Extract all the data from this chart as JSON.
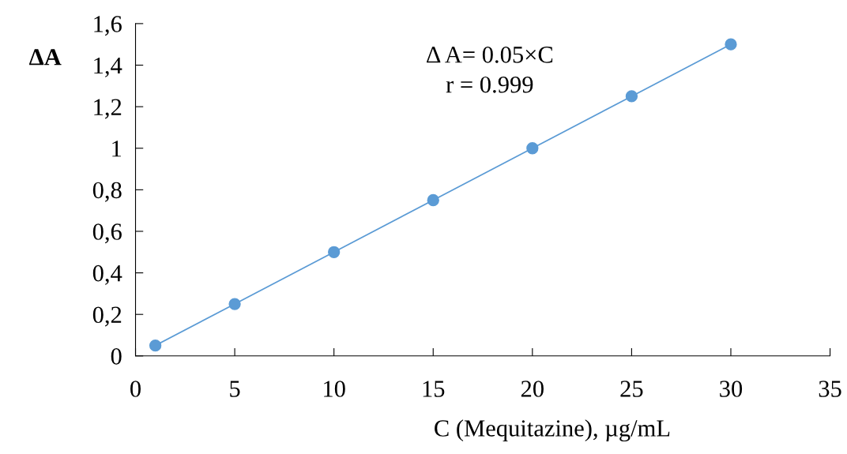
{
  "chart_data": {
    "type": "line",
    "xlabel": "C (Mequitazine), µg/mL",
    "ylabel": "ΔA",
    "x": [
      1,
      5,
      10,
      15,
      20,
      25,
      30
    ],
    "series": [
      {
        "color": "#5b9bd5",
        "values": [
          0.05,
          0.25,
          0.5,
          0.75,
          1.0,
          1.25,
          1.5
        ]
      }
    ],
    "marker": "circle",
    "line_style": "solid",
    "grid": false,
    "legend": false,
    "xlim": [
      0,
      35
    ],
    "xticks": [
      0,
      5,
      10,
      15,
      20,
      25,
      30,
      35
    ],
    "ylim": [
      0,
      1.6
    ],
    "yticks": [
      0,
      {
        "value": 0.2,
        "label": "0,2"
      },
      {
        "value": 0.4,
        "label": "0,4"
      },
      {
        "value": 0.6,
        "label": "0,6"
      },
      {
        "value": 0.8,
        "label": "0,8"
      },
      1,
      {
        "value": 1.2,
        "label": "1,2"
      },
      {
        "value": 1.4,
        "label": "1,4"
      },
      {
        "value": 1.6,
        "label": "1,6"
      }
    ],
    "annotations": [
      "Δ A= 0.05×C",
      "r = 0.999"
    ]
  }
}
